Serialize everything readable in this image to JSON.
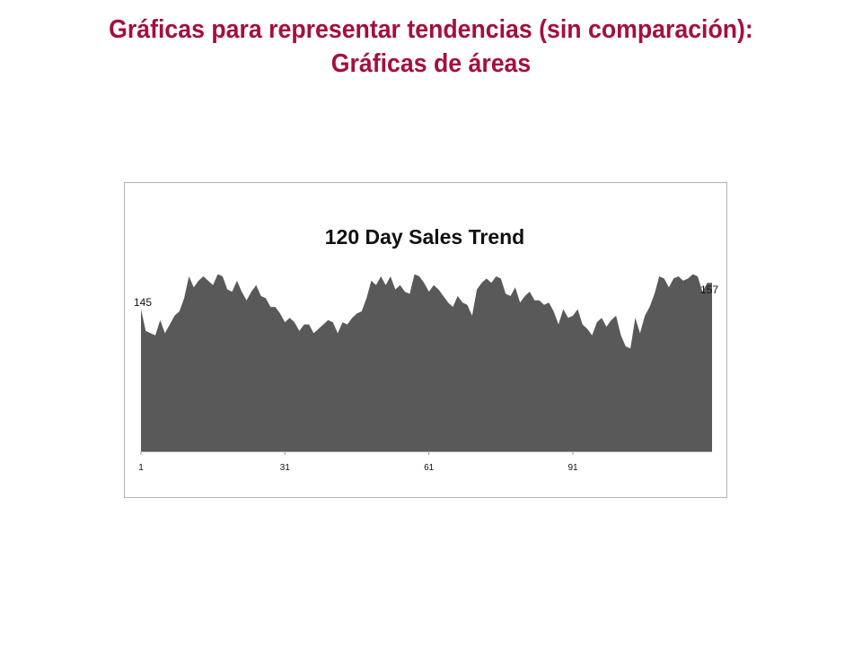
{
  "slide": {
    "title_line1": "Gráficas para representar tendencias (sin comparación):",
    "title_line2": "Gráficas de áreas"
  },
  "colors": {
    "title": "#a50f3c",
    "area_fill": "#595959",
    "frame_border": "#b5b5b5"
  },
  "chart_data": {
    "type": "area",
    "title": "120 Day Sales Trend",
    "xlabel": "",
    "ylabel": "",
    "x_ticks": [
      "1",
      "31",
      "61",
      "91"
    ],
    "y_axis_visible": false,
    "grid": false,
    "legend": "none",
    "ylim": [
      80,
      160
    ],
    "x": [
      1,
      2,
      3,
      4,
      5,
      6,
      7,
      8,
      9,
      10,
      11,
      12,
      13,
      14,
      15,
      16,
      17,
      18,
      19,
      20,
      21,
      22,
      23,
      24,
      25,
      26,
      27,
      28,
      29,
      30,
      31,
      32,
      33,
      34,
      35,
      36,
      37,
      38,
      39,
      40,
      41,
      42,
      43,
      44,
      45,
      46,
      47,
      48,
      49,
      50,
      51,
      52,
      53,
      54,
      55,
      56,
      57,
      58,
      59,
      60,
      61,
      62,
      63,
      64,
      65,
      66,
      67,
      68,
      69,
      70,
      71,
      72,
      73,
      74,
      75,
      76,
      77,
      78,
      79,
      80,
      81,
      82,
      83,
      84,
      85,
      86,
      87,
      88,
      89,
      90,
      91,
      92,
      93,
      94,
      95,
      96,
      97,
      98,
      99,
      100,
      101,
      102,
      103,
      104,
      105,
      106,
      107,
      108,
      109,
      110,
      111,
      112,
      113,
      114,
      115,
      116,
      117,
      118,
      119,
      120
    ],
    "values": [
      145,
      135,
      134,
      133,
      140,
      134,
      138,
      142,
      144,
      150,
      160,
      155,
      158,
      160,
      158,
      156,
      161,
      160,
      154,
      153,
      158,
      153,
      149,
      153,
      156,
      151,
      150,
      146,
      146,
      143,
      139,
      141,
      139,
      135,
      138,
      138,
      134,
      136,
      138,
      140,
      139,
      134,
      139,
      138,
      141,
      143,
      144,
      150,
      158,
      156,
      160,
      156,
      160,
      154,
      156,
      153,
      152,
      161,
      160,
      157,
      153,
      156,
      154,
      151,
      148,
      146,
      151,
      148,
      147,
      142,
      154,
      157,
      159,
      157,
      160,
      159,
      152,
      151,
      155,
      148,
      151,
      153,
      149,
      149,
      147,
      148,
      144,
      138,
      145,
      141,
      142,
      145,
      138,
      136,
      133,
      139,
      141,
      137,
      140,
      142,
      133,
      128,
      127,
      141,
      134,
      142,
      146,
      152,
      160,
      159,
      155,
      159,
      160,
      158,
      159,
      161,
      160,
      153,
      157,
      157
    ]
  },
  "annotations": {
    "start_value": "145",
    "end_value": "157"
  }
}
